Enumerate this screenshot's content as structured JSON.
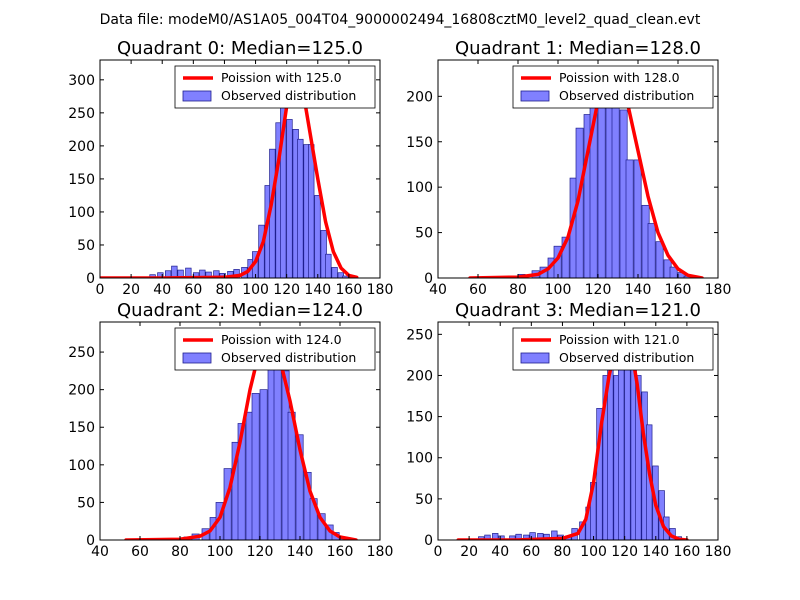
{
  "figure": {
    "title": "Data file: modeM0/AS1A05_004T04_9000002494_16808cztM0_level2_quad_clean.evt"
  },
  "colors": {
    "hist_fill": "#8080ff",
    "hist_edge": "#1f1f8f",
    "poisson_line": "#ff0000",
    "axes": "#000000",
    "background": "#ffffff"
  },
  "chart_data": [
    {
      "type": "bar",
      "title": "Quadrant 0: Median=125.0",
      "xlim": [
        0,
        180
      ],
      "ylim": [
        0,
        330
      ],
      "xticks": [
        0,
        20,
        40,
        60,
        80,
        100,
        120,
        140,
        160,
        180
      ],
      "yticks": [
        0,
        50,
        100,
        150,
        200,
        250,
        300
      ],
      "legend_position": "top-right",
      "series": [
        {
          "name": "Poission with 125.0",
          "type": "line",
          "x": [
            0,
            40,
            80,
            90,
            95,
            100,
            105,
            110,
            115,
            120,
            125,
            128,
            130,
            135,
            140,
            145,
            150,
            155,
            160,
            165
          ],
          "y": [
            0,
            0,
            1,
            4,
            10,
            25,
            55,
            110,
            180,
            260,
            315,
            305,
            290,
            220,
            150,
            85,
            40,
            15,
            4,
            1
          ]
        },
        {
          "name": "Observed distribution",
          "type": "histogram",
          "bin_width": 3.6,
          "bin_starts": [
            32,
            37,
            42,
            46,
            50,
            55,
            60,
            64,
            68,
            73,
            77,
            82,
            86,
            91,
            95,
            98,
            102,
            106,
            109,
            113,
            116,
            120,
            124,
            127,
            131,
            134,
            138,
            142,
            145,
            149,
            153,
            156,
            160
          ],
          "counts": [
            5,
            8,
            11,
            18,
            12,
            15,
            8,
            12,
            9,
            11,
            7,
            10,
            13,
            16,
            28,
            40,
            80,
            140,
            195,
            235,
            285,
            240,
            225,
            210,
            202,
            202,
            125,
            72,
            36,
            16,
            8,
            3,
            1
          ]
        }
      ]
    },
    {
      "type": "bar",
      "title": "Quadrant 1: Median=128.0",
      "xlim": [
        40,
        180
      ],
      "ylim": [
        0,
        240
      ],
      "xticks": [
        40,
        60,
        80,
        100,
        120,
        140,
        160,
        180
      ],
      "yticks": [
        0,
        50,
        100,
        150,
        200
      ],
      "legend_position": "top-right",
      "series": [
        {
          "name": "Poission with 128.0",
          "type": "line",
          "x": [
            56,
            80,
            90,
            95,
            100,
            105,
            110,
            115,
            120,
            125,
            128,
            130,
            135,
            140,
            145,
            150,
            155,
            160,
            165,
            172
          ],
          "y": [
            0,
            1,
            4,
            10,
            22,
            45,
            85,
            140,
            195,
            225,
            230,
            222,
            190,
            140,
            90,
            50,
            25,
            10,
            3,
            0
          ]
        },
        {
          "name": "Observed distribution",
          "type": "histogram",
          "bin_width": 3.6,
          "bin_starts": [
            80,
            87,
            91,
            95,
            98,
            102,
            106,
            109,
            113,
            116,
            120,
            124,
            127,
            131,
            134,
            138,
            142,
            145,
            149,
            153,
            156,
            160,
            163
          ],
          "counts": [
            4,
            8,
            12,
            22,
            35,
            45,
            110,
            165,
            180,
            200,
            225,
            210,
            220,
            185,
            130,
            130,
            80,
            60,
            40,
            20,
            12,
            6,
            2
          ]
        }
      ]
    },
    {
      "type": "bar",
      "title": "Quadrant 2: Median=124.0",
      "xlim": [
        40,
        180
      ],
      "ylim": [
        0,
        290
      ],
      "xticks": [
        40,
        60,
        80,
        100,
        120,
        140,
        160,
        180
      ],
      "yticks": [
        0,
        50,
        100,
        150,
        200,
        250
      ],
      "legend_position": "top-right",
      "series": [
        {
          "name": "Poission with 124.0",
          "type": "line",
          "x": [
            53,
            80,
            90,
            95,
            100,
            105,
            110,
            115,
            120,
            124,
            127,
            130,
            135,
            140,
            145,
            150,
            155,
            160,
            168
          ],
          "y": [
            0,
            1,
            5,
            12,
            30,
            70,
            130,
            200,
            255,
            275,
            265,
            240,
            185,
            120,
            65,
            30,
            12,
            4,
            0
          ]
        },
        {
          "name": "Observed distribution",
          "type": "histogram",
          "bin_width": 3.6,
          "bin_starts": [
            82,
            86,
            91,
            95,
            98,
            102,
            106,
            109,
            113,
            116,
            120,
            124,
            127,
            131,
            134,
            138,
            142,
            145,
            149,
            153,
            156,
            160
          ],
          "counts": [
            4,
            8,
            15,
            30,
            50,
            95,
            130,
            155,
            170,
            195,
            200,
            270,
            275,
            225,
            170,
            140,
            90,
            55,
            35,
            20,
            10,
            4
          ]
        }
      ]
    },
    {
      "type": "bar",
      "title": "Quadrant 3: Median=121.0",
      "xlim": [
        0,
        180
      ],
      "ylim": [
        0,
        265
      ],
      "xticks": [
        0,
        20,
        40,
        60,
        80,
        100,
        120,
        140,
        160,
        180
      ],
      "yticks": [
        0,
        50,
        100,
        150,
        200,
        250
      ],
      "legend_position": "top-right",
      "series": [
        {
          "name": "Poission with 121.0",
          "type": "line",
          "x": [
            13,
            50,
            80,
            90,
            95,
            100,
            105,
            110,
            115,
            120,
            124,
            128,
            132,
            136,
            140,
            145,
            150,
            155,
            160
          ],
          "y": [
            0,
            0,
            2,
            8,
            25,
            70,
            140,
            200,
            240,
            255,
            235,
            190,
            130,
            80,
            42,
            16,
            5,
            1,
            0
          ]
        },
        {
          "name": "Observed distribution",
          "type": "histogram",
          "bin_width": 3.6,
          "bin_starts": [
            26,
            30,
            35,
            39,
            46,
            50,
            55,
            59,
            64,
            68,
            73,
            77,
            82,
            86,
            91,
            95,
            98,
            102,
            106,
            109,
            113,
            116,
            120,
            124,
            127,
            131,
            134,
            138,
            142,
            145,
            149,
            153
          ],
          "counts": [
            4,
            6,
            8,
            5,
            5,
            7,
            6,
            9,
            8,
            7,
            11,
            6,
            5,
            14,
            22,
            40,
            70,
            160,
            200,
            215,
            200,
            240,
            250,
            220,
            200,
            180,
            140,
            90,
            60,
            28,
            14,
            4
          ]
        }
      ]
    }
  ]
}
